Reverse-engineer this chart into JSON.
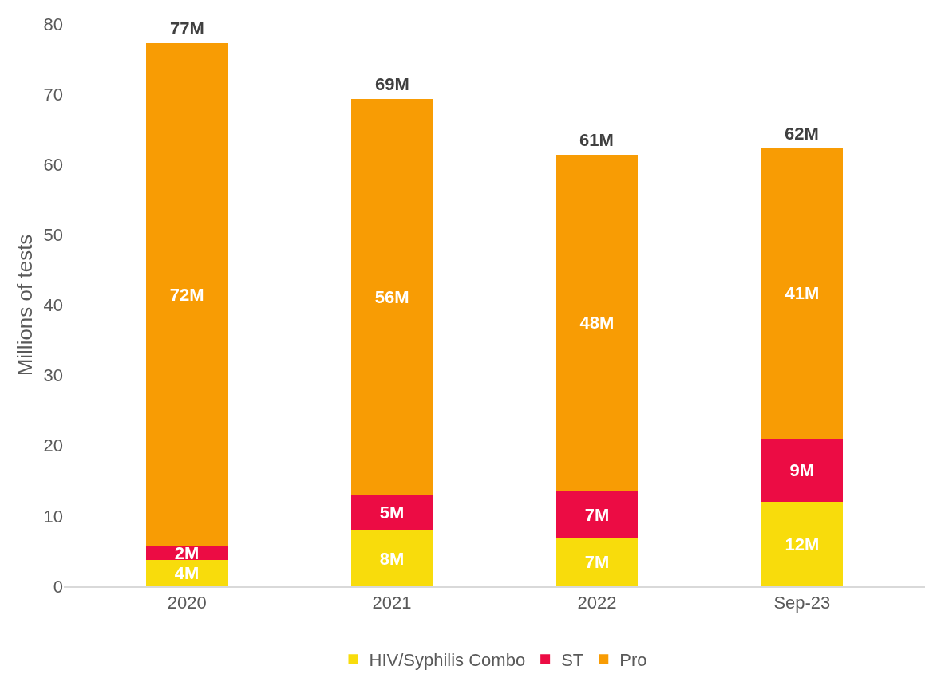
{
  "chart_data": {
    "type": "bar",
    "stacked": true,
    "ylabel": "Millions of tests",
    "categories": [
      "2020",
      "2021",
      "2022",
      "Sep-23"
    ],
    "series": [
      {
        "name": "HIV/Syphilis Combo",
        "color": "#f8dc0c",
        "values": [
          3.8,
          7.9,
          6.9,
          12.0
        ],
        "value_labels": [
          "4M",
          "8M",
          "7M",
          "12M"
        ]
      },
      {
        "name": "ST",
        "color": "#ec0c44",
        "values": [
          1.9,
          5.1,
          6.6,
          9.0
        ],
        "value_labels": [
          "2M",
          "5M",
          "7M",
          "9M"
        ]
      },
      {
        "name": "Pro",
        "color": "#f89c04",
        "values": [
          71.6,
          56.3,
          47.9,
          41.3
        ],
        "value_labels": [
          "72M",
          "56M",
          "48M",
          "41M"
        ]
      }
    ],
    "totals": [
      "77M",
      "69M",
      "61M",
      "62M"
    ],
    "ylim": [
      0,
      80
    ],
    "yticks": [
      0,
      10,
      20,
      30,
      40,
      50,
      60,
      70,
      80
    ],
    "legend": "bottom"
  }
}
